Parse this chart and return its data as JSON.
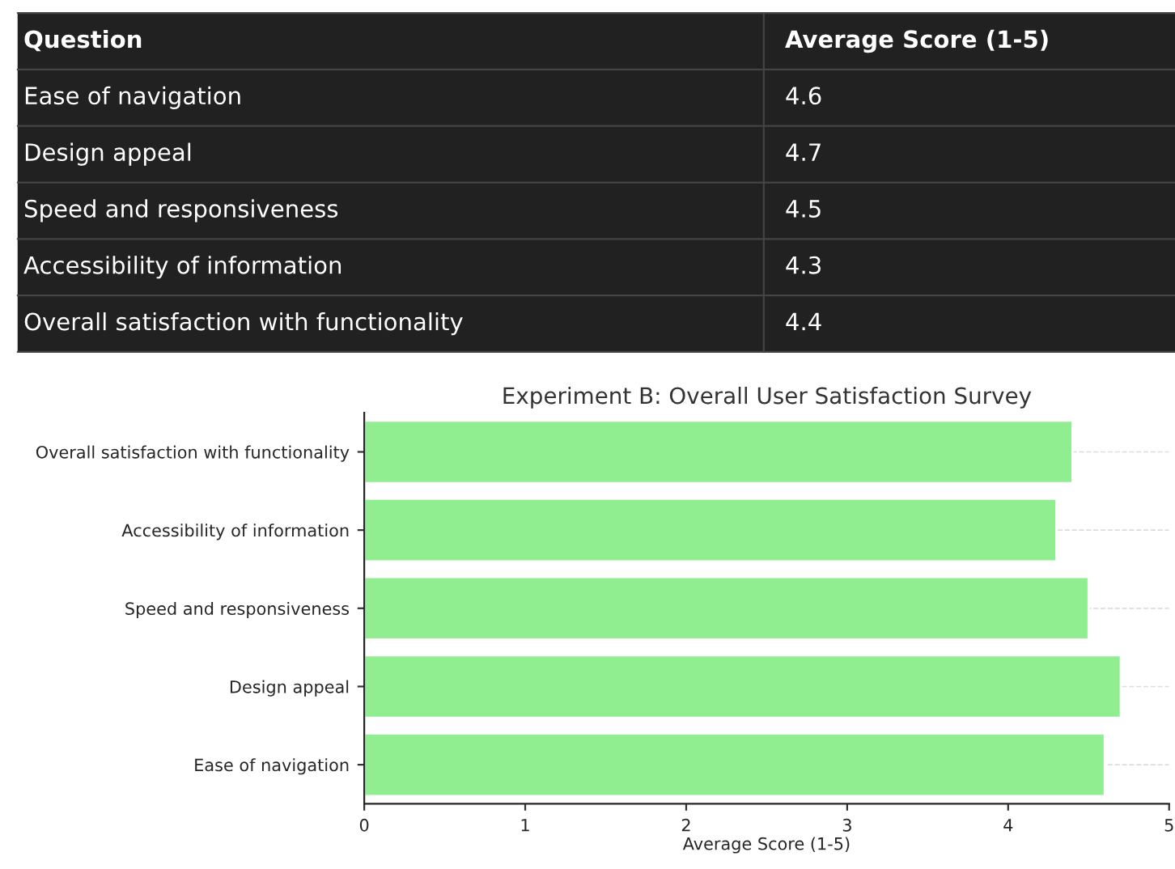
{
  "chart_data": [
    {
      "type": "other",
      "annotations": [
        "Question",
        "Average Score (1-5)",
        "Ease of navigation",
        "4.6",
        "Design appeal",
        "4.7",
        "Speed and responsiveness",
        "4.5",
        "Accessibility of information",
        "4.3",
        "Overall satisfaction with functionality",
        "4.4"
      ]
    },
    {
      "type": "bar",
      "orientation": "horizontal",
      "title": "Experiment B: Overall User Satisfaction Survey",
      "xlabel": "Average Score (1-5)",
      "categories": [
        "Overall satisfaction with functionality",
        "Accessibility of information",
        "Speed and responsiveness",
        "Design appeal",
        "Ease of navigation"
      ],
      "values": [
        4.4,
        4.3,
        4.5,
        4.7,
        4.6
      ],
      "color": "#90ee90",
      "xlim": [
        0,
        5
      ],
      "xticks": [
        0,
        1,
        2,
        3,
        4,
        5
      ],
      "grid": "y"
    }
  ]
}
